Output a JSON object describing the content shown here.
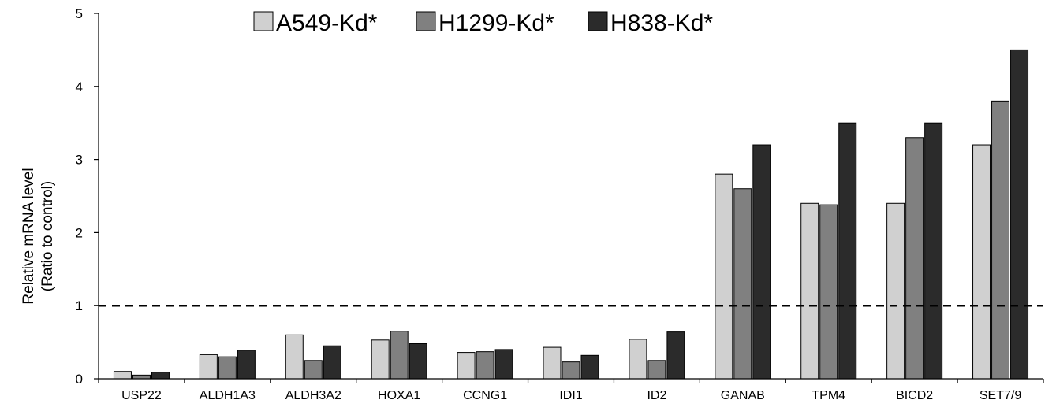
{
  "chart_data": {
    "type": "bar",
    "categories": [
      "USP22",
      "ALDH1A3",
      "ALDH3A2",
      "HOXA1",
      "CCNG1",
      "IDI1",
      "ID2",
      "GANAB",
      "TPM4",
      "BICD2",
      "SET7/9"
    ],
    "series": [
      {
        "name": "A549-Kd*",
        "color": "#d0d0d0",
        "values": [
          0.1,
          0.33,
          0.6,
          0.53,
          0.36,
          0.43,
          0.54,
          2.8,
          2.4,
          2.4,
          3.2
        ]
      },
      {
        "name": "H1299-Kd*",
        "color": "#808080",
        "values": [
          0.05,
          0.3,
          0.25,
          0.65,
          0.37,
          0.23,
          0.25,
          2.6,
          2.38,
          3.3,
          3.8
        ]
      },
      {
        "name": "H838-Kd*",
        "color": "#2b2b2b",
        "values": [
          0.09,
          0.39,
          0.45,
          0.48,
          0.4,
          0.32,
          0.64,
          3.2,
          3.5,
          3.5,
          4.5
        ]
      }
    ],
    "ylabel_line1": "Relative mRNA level",
    "ylabel_line2": "(Ratio to control)",
    "ylim": [
      0,
      5
    ],
    "yticks": [
      "0",
      "1",
      "2",
      "3",
      "4",
      "5"
    ],
    "reference_line": 1,
    "legend_position": "top",
    "grid": false
  }
}
